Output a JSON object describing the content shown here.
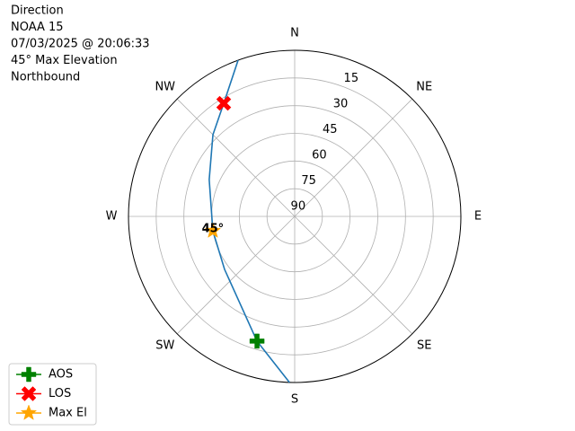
{
  "chart_data": {
    "type": "polar",
    "title_lines": [
      "Direction",
      "NOAA 15",
      "07/03/2025 @ 20:06:33",
      "45° Max Elevation",
      "Northbound"
    ],
    "directions": [
      {
        "value": 0,
        "label": "N"
      },
      {
        "value": 45,
        "label": "NE"
      },
      {
        "value": 90,
        "label": "E"
      },
      {
        "value": 135,
        "label": "SE"
      },
      {
        "value": 180,
        "label": "S"
      },
      {
        "value": 225,
        "label": "SW"
      },
      {
        "value": 270,
        "label": "W"
      },
      {
        "value": 315,
        "label": "NW"
      }
    ],
    "rlim": [
      90,
      0
    ],
    "rticks": [
      15,
      30,
      45,
      60,
      75,
      90
    ],
    "grid": true,
    "track": {
      "color": "#1f77b4",
      "azimuth": [
        181.8,
        196.8,
        232.9,
        260,
        293.3,
        315,
        327.9,
        340.1
      ],
      "elevation": [
        0,
        19.4,
        42.4,
        45,
        39.6,
        27.4,
        17.7,
        0
      ]
    },
    "series": [
      {
        "name": "AOS",
        "color": "#008000",
        "marker": "plus",
        "azimuth": [
          196.8
        ],
        "elevation": [
          19.4
        ]
      },
      {
        "name": "LOS",
        "color": "#ff0000",
        "marker": "x",
        "azimuth": [
          327.9
        ],
        "elevation": [
          17.7
        ]
      },
      {
        "name": "Max El",
        "color": "#ffa500",
        "marker": "star",
        "azimuth": [
          260
        ],
        "elevation": [
          45
        ],
        "value_labels": [
          "45°"
        ]
      }
    ],
    "legend": "lower left"
  }
}
